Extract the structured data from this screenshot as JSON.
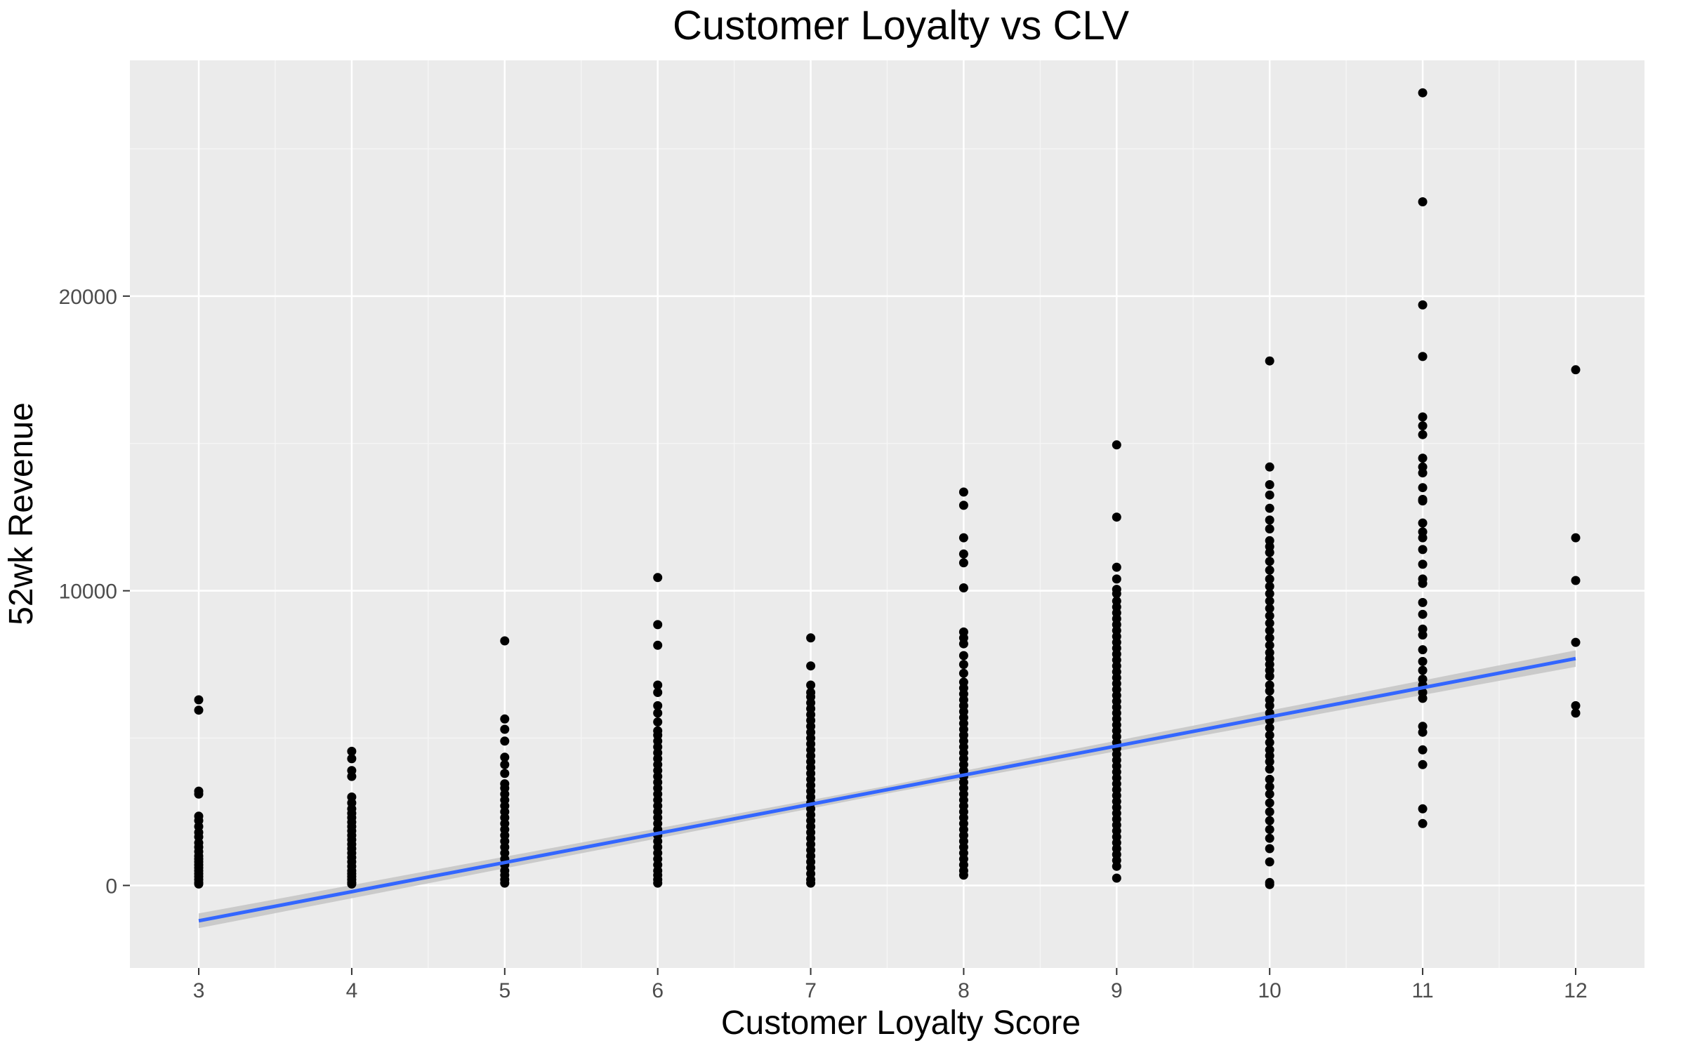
{
  "chart_data": {
    "type": "scatter",
    "title": "Customer Loyalty vs CLV",
    "xlabel": "Customer Loyalty Score",
    "ylabel": "52wk Revenue",
    "xlim": [
      2.55,
      12.45
    ],
    "ylim": [
      -2800,
      28000
    ],
    "x_ticks": [
      3,
      4,
      5,
      6,
      7,
      8,
      9,
      10,
      11,
      12
    ],
    "x_tick_labels": [
      "3",
      "4",
      "5",
      "6",
      "7",
      "8",
      "9",
      "10",
      "11",
      "12"
    ],
    "y_ticks": [
      0,
      10000,
      20000
    ],
    "y_tick_labels": [
      "0",
      "10000",
      "20000"
    ],
    "grid": true,
    "legend": "none",
    "colors": {
      "panel_background": "#ebebeb",
      "grid_major": "#ffffff",
      "grid_minor": "#f5f5f5",
      "points": "#000000",
      "trend_line": "#3366ff",
      "confidence_band": "#c4c4c4"
    },
    "series": [
      {
        "values": [
          {
            "x": 3,
            "points": [
              6300,
              5950,
              3200,
              3100,
              2350,
              2200,
              2000,
              1800,
              1650,
              1450,
              1300,
              1150,
              1000,
              900,
              800,
              700,
              600,
              500,
              400,
              300,
              200,
              100,
              50
            ]
          },
          {
            "x": 4,
            "points": [
              4550,
              4300,
              3900,
              3700,
              3000,
              2800,
              2600,
              2450,
              2300,
              2150,
              2000,
              1850,
              1700,
              1550,
              1400,
              1250,
              1100,
              950,
              800,
              650,
              500,
              400,
              300,
              200,
              100,
              50
            ]
          },
          {
            "x": 5,
            "points": [
              8300,
              5650,
              5300,
              4900,
              4350,
              4100,
              3800,
              3450,
              3300,
              3100,
              2900,
              2700,
              2500,
              2300,
              2100,
              1900,
              1700,
              1500,
              1300,
              1100,
              900,
              700,
              500,
              350,
              200,
              80
            ]
          },
          {
            "x": 6,
            "points": [
              10450,
              8850,
              8150,
              6800,
              6550,
              6100,
              5850,
              5550,
              5250,
              5100,
              4900,
              4700,
              4500,
              4300,
              4100,
              3900,
              3700,
              3500,
              3300,
              3100,
              2900,
              2700,
              2500,
              2300,
              2100,
              1900,
              1700,
              1500,
              1300,
              1100,
              900,
              700,
              500,
              350,
              200,
              80
            ]
          },
          {
            "x": 7,
            "points": [
              8400,
              7450,
              6800,
              6550,
              6400,
              6200,
              6000,
              5800,
              5600,
              5400,
              5200,
              5000,
              4800,
              4600,
              4400,
              4200,
              4000,
              3800,
              3600,
              3400,
              3200,
              3000,
              2800,
              2600,
              2400,
              2200,
              2000,
              1800,
              1600,
              1400,
              1200,
              1000,
              800,
              600,
              400,
              200,
              80
            ]
          },
          {
            "x": 8,
            "points": [
              13350,
              12900,
              11800,
              11250,
              10950,
              10100,
              8600,
              8400,
              8200,
              7800,
              7500,
              7200,
              6900,
              6700,
              6500,
              6300,
              6100,
              5900,
              5700,
              5500,
              5300,
              5100,
              4900,
              4700,
              4500,
              4300,
              4100,
              3900,
              3700,
              3500,
              3300,
              3100,
              2900,
              2700,
              2500,
              2300,
              2100,
              1900,
              1700,
              1500,
              1300,
              1100,
              900,
              700,
              500,
              350
            ]
          },
          {
            "x": 9,
            "points": [
              14950,
              12500,
              10800,
              10400,
              10050,
              9900,
              9650,
              9450,
              9250,
              9050,
              8850,
              8650,
              8450,
              8250,
              8050,
              7850,
              7650,
              7450,
              7250,
              7050,
              6850,
              6650,
              6450,
              6250,
              6050,
              5850,
              5650,
              5450,
              5250,
              5050,
              4850,
              4650,
              4450,
              4250,
              4050,
              3850,
              3650,
              3450,
              3250,
              3050,
              2850,
              2650,
              2450,
              2250,
              2050,
              1850,
              1650,
              1450,
              1250,
              1050,
              850,
              650,
              250
            ]
          },
          {
            "x": 10,
            "points": [
              17800,
              14200,
              13600,
              13250,
              12800,
              12400,
              12100,
              11700,
              11500,
              11300,
              11000,
              10700,
              10400,
              10150,
              9900,
              9650,
              9400,
              9150,
              8900,
              8650,
              8400,
              8150,
              7900,
              7700,
              7500,
              7300,
              7100,
              6800,
              6600,
              6300,
              6100,
              5850,
              5600,
              5350,
              5100,
              4850,
              4600,
              4400,
              4200,
              3950,
              3600,
              3350,
              3100,
              2800,
              2500,
              2200,
              1900,
              1600,
              1250,
              800,
              100,
              30
            ]
          },
          {
            "x": 11,
            "points": [
              26900,
              23200,
              19700,
              17950,
              15900,
              15600,
              15300,
              14500,
              14200,
              14000,
              13500,
              13100,
              13050,
              12300,
              12000,
              11800,
              11400,
              10900,
              10400,
              10250,
              9600,
              9200,
              8700,
              8500,
              8000,
              7600,
              7300,
              7000,
              6800,
              6550,
              6350,
              5400,
              5200,
              4600,
              4100,
              2600,
              2100
            ]
          },
          {
            "x": 12,
            "points": [
              17500,
              11800,
              10350,
              8250,
              6100,
              5850
            ]
          }
        ]
      }
    ],
    "trend_line": {
      "x": [
        3,
        12
      ],
      "y": [
        -1200,
        7700
      ],
      "band_halfwidth": [
        250,
        130,
        280
      ]
    }
  }
}
